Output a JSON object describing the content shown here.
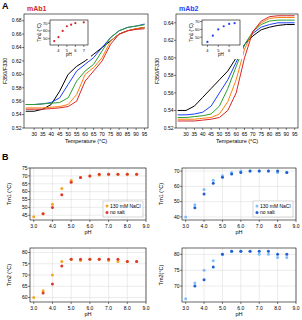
{
  "panel_labels": [
    "A",
    "B"
  ],
  "chart_data": [
    {
      "type": "line",
      "title": "mAb1",
      "color": "#d62728",
      "x_label": "Temperature (°C)",
      "y_label": "F350/F330",
      "x": [
        25,
        30,
        35,
        40,
        45,
        50,
        55,
        60,
        65,
        70,
        75,
        80,
        85,
        90,
        95
      ],
      "xlim": [
        24,
        97
      ],
      "xticks": [
        30,
        35,
        40,
        45,
        50,
        55,
        60,
        65,
        70,
        75,
        80,
        85,
        90,
        95
      ],
      "ylim": [
        0.52,
        0.69
      ],
      "yticks": [
        0.52,
        0.54,
        0.56,
        0.58,
        {
          "value": 0.6,
          "label": "0.60"
        },
        0.62,
        0.64,
        0.66,
        0.68
      ],
      "grid": false,
      "series": [
        {
          "color": "#000000",
          "values": [
            0.545,
            0.545,
            0.548,
            0.555,
            0.575,
            0.6,
            0.612,
            0.62,
            0.63,
            0.64,
            0.65,
            0.66,
            0.665,
            0.668,
            0.67
          ]
        },
        {
          "color": "#1f3fff",
          "values": [
            0.555,
            0.555,
            0.556,
            0.558,
            0.565,
            0.585,
            0.605,
            0.615,
            0.625,
            0.64,
            0.655,
            0.665,
            0.67,
            0.672,
            0.675
          ]
        },
        {
          "color": "#2ca02c",
          "values": [
            0.555,
            0.555,
            0.556,
            0.557,
            0.558,
            0.565,
            0.59,
            0.605,
            0.615,
            0.635,
            0.655,
            0.665,
            0.67,
            0.672,
            0.674
          ]
        },
        {
          "color": "#ff7f0e",
          "values": [
            0.55,
            0.55,
            0.55,
            0.551,
            0.552,
            0.555,
            0.57,
            0.6,
            0.61,
            0.625,
            0.65,
            0.66,
            0.665,
            0.668,
            0.67
          ]
        },
        {
          "color": "#d62728",
          "values": [
            0.548,
            0.548,
            0.548,
            0.549,
            0.55,
            0.552,
            0.56,
            0.59,
            0.605,
            0.62,
            0.645,
            0.66,
            0.665,
            0.667,
            0.668
          ]
        }
      ]
    },
    {
      "type": "scatter",
      "x_label": "pH",
      "y_label": "Tm1 (°C)",
      "xlim": [
        3,
        7.5
      ],
      "xticks": [
        4,
        5,
        6,
        7
      ],
      "ylim": [
        42,
        74
      ],
      "yticks": [
        50,
        60,
        70
      ],
      "grid": false,
      "series": [
        {
          "color": "#d62728",
          "marker": "circle",
          "x": [
            3.5,
            4,
            4.5,
            5,
            5.5,
            6,
            7
          ],
          "values": [
            47,
            52,
            60,
            66,
            68,
            70,
            71
          ]
        }
      ]
    },
    {
      "type": "line",
      "title": "mAb2",
      "color": "#1f3fff",
      "x_label": "Temperature (°C)",
      "y_label": "F350/F330",
      "x": [
        25,
        30,
        35,
        40,
        45,
        50,
        55,
        60,
        65,
        70,
        75,
        80,
        85,
        90,
        95
      ],
      "xlim": [
        24,
        97
      ],
      "xticks": [
        30,
        35,
        40,
        45,
        50,
        55,
        60,
        65,
        70,
        75,
        80,
        85,
        90,
        95
      ],
      "ylim": [
        0.52,
        0.65
      ],
      "yticks": [
        0.52,
        0.54,
        0.56,
        0.58,
        {
          "value": 0.6,
          "label": "0.60"
        },
        0.62,
        0.64
      ],
      "grid": false,
      "series": [
        {
          "color": "#000000",
          "values": [
            0.54,
            0.54,
            0.545,
            0.555,
            0.565,
            0.575,
            0.585,
            0.6,
            0.615,
            0.625,
            0.632,
            0.635,
            0.637,
            0.638,
            0.638
          ]
        },
        {
          "color": "#1f3fff",
          "values": [
            0.535,
            0.535,
            0.536,
            0.538,
            0.545,
            0.56,
            0.575,
            0.595,
            0.615,
            0.628,
            0.635,
            0.638,
            0.64,
            0.64,
            0.64
          ]
        },
        {
          "color": "#2ca02c",
          "values": [
            0.532,
            0.532,
            0.533,
            0.534,
            0.536,
            0.545,
            0.565,
            0.59,
            0.615,
            0.63,
            0.638,
            0.642,
            0.643,
            0.643,
            0.643
          ]
        },
        {
          "color": "#ff7f0e",
          "values": [
            0.53,
            0.53,
            0.53,
            0.531,
            0.532,
            0.536,
            0.55,
            0.575,
            0.61,
            0.63,
            0.64,
            0.645,
            0.646,
            0.646,
            0.646
          ]
        },
        {
          "color": "#d62728",
          "values": [
            0.528,
            0.528,
            0.528,
            0.529,
            0.53,
            0.532,
            0.54,
            0.56,
            0.6,
            0.63,
            0.642,
            0.647,
            0.648,
            0.648,
            0.648
          ]
        }
      ]
    },
    {
      "type": "scatter",
      "x_label": "pH",
      "y_label": "Tm1 (°C)",
      "xlim": [
        3.5,
        7
      ],
      "xticks": [
        4,
        5,
        6
      ],
      "ylim": [
        40,
        72
      ],
      "yticks": [
        50,
        60,
        70
      ],
      "grid": false,
      "series": [
        {
          "color": "#1f3fff",
          "marker": "circle",
          "x": [
            4,
            4.5,
            5,
            5.5,
            6,
            6.5
          ],
          "values": [
            44,
            52,
            60,
            64,
            67,
            68
          ]
        }
      ]
    },
    {
      "type": "scatter",
      "x_label": "pH",
      "y_label": "Tm1 (°C)",
      "xlim": [
        2.8,
        9
      ],
      "xticks": [
        {
          "value": 3,
          "label": "3.0"
        },
        {
          "value": 4,
          "label": "4.0"
        },
        {
          "value": 5,
          "label": "5.0"
        },
        {
          "value": 6,
          "label": "6.0"
        },
        {
          "value": 7,
          "label": "7.0"
        },
        {
          "value": 8,
          "label": "8.0"
        },
        {
          "value": 9,
          "label": "9.0"
        }
      ],
      "ylim": [
        42,
        75
      ],
      "yticks": [
        45,
        50,
        55,
        60,
        65,
        70,
        75
      ],
      "grid": true,
      "legend": "lower right",
      "series": [
        {
          "name": "130 mM NaCl",
          "color": "#f5a623",
          "marker": "circle",
          "x": [
            3,
            3.5,
            4,
            4.5,
            5,
            5.5,
            6,
            6.5,
            7,
            7.5,
            8,
            8.5
          ],
          "values": [
            44,
            46,
            52,
            62,
            67,
            69,
            70,
            70.5,
            71,
            71,
            71,
            71
          ]
        },
        {
          "name": "no salt",
          "color": "#e0392b",
          "marker": "circle",
          "x": [
            3.5,
            4,
            4.5,
            5,
            5.5,
            6,
            6.5,
            7,
            7.5,
            8,
            8.5
          ],
          "values": [
            46,
            50,
            58,
            66,
            69,
            70,
            71,
            71,
            71,
            71,
            71
          ]
        }
      ]
    },
    {
      "type": "scatter",
      "x_label": "pH",
      "y_label": "Tm1 (°C)",
      "xlim": [
        2.8,
        9
      ],
      "xticks": [
        {
          "value": 3,
          "label": "3.0"
        },
        {
          "value": 4,
          "label": "4.0"
        },
        {
          "value": 5,
          "label": "5.0"
        },
        {
          "value": 6,
          "label": "6.0"
        },
        {
          "value": 7,
          "label": "7.0"
        },
        {
          "value": 8,
          "label": "8.0"
        },
        {
          "value": 9,
          "label": "9.0"
        }
      ],
      "ylim": [
        38,
        72
      ],
      "yticks": [
        40,
        50,
        60,
        70
      ],
      "grid": true,
      "legend": "lower right",
      "series": [
        {
          "name": "130 mM NaCl",
          "color": "#7fbfff",
          "marker": "circle",
          "x": [
            3,
            3.5,
            4,
            4.5,
            5,
            5.5,
            6,
            6.5,
            7,
            7.5,
            8,
            8.5
          ],
          "values": [
            40,
            48,
            58,
            64,
            67,
            69,
            70,
            70,
            70,
            70,
            69,
            69
          ]
        },
        {
          "name": "no salt",
          "color": "#1f5fd1",
          "marker": "circle",
          "x": [
            3.5,
            4,
            4.5,
            5,
            5.5,
            6,
            6.5,
            7,
            7.5,
            8,
            8.5
          ],
          "values": [
            46,
            55,
            62,
            66,
            68,
            69,
            70,
            70,
            70,
            70,
            69
          ]
        }
      ]
    },
    {
      "type": "scatter",
      "x_label": "pH",
      "y_label": "Tm2 (°C)",
      "xlim": [
        2.8,
        9
      ],
      "xticks": [
        {
          "value": 3,
          "label": "3.0"
        },
        {
          "value": 4,
          "label": "4.0"
        },
        {
          "value": 5,
          "label": "5.0"
        },
        {
          "value": 6,
          "label": "6.0"
        },
        {
          "value": 7,
          "label": "7.0"
        },
        {
          "value": 8,
          "label": "8.0"
        },
        {
          "value": 9,
          "label": "9.0"
        }
      ],
      "ylim": [
        58,
        82
      ],
      "yticks": [
        60,
        65,
        70,
        75,
        80
      ],
      "grid": true,
      "series": [
        {
          "name": "130 mM NaCl",
          "color": "#f5a623",
          "marker": "circle",
          "x": [
            3,
            3.5,
            4,
            4.5,
            5,
            5.5,
            6,
            6.5,
            7,
            7.5,
            8,
            8.5
          ],
          "values": [
            60,
            63,
            70,
            76,
            77,
            76.5,
            77,
            77,
            76.5,
            76,
            76,
            76
          ]
        },
        {
          "name": "no salt",
          "color": "#e0392b",
          "marker": "circle",
          "x": [
            3.5,
            4,
            4.5,
            5,
            5.5,
            6,
            6.5,
            7,
            7.5,
            8,
            8.5
          ],
          "values": [
            62,
            66,
            74,
            77,
            77,
            77,
            77,
            77,
            77,
            76,
            76
          ]
        }
      ]
    },
    {
      "type": "scatter",
      "x_label": "pH",
      "y_label": "Tm2(°C)",
      "xlim": [
        2.8,
        9
      ],
      "xticks": [
        {
          "value": 3,
          "label": "3.0"
        },
        {
          "value": 4,
          "label": "4.0"
        },
        {
          "value": 5,
          "label": "5.0"
        },
        {
          "value": 6,
          "label": "6.0"
        },
        {
          "value": 7,
          "label": "7.0"
        },
        {
          "value": 8,
          "label": "8.0"
        },
        {
          "value": 9,
          "label": "9.0"
        }
      ],
      "ylim": [
        65,
        82
      ],
      "yticks": [
        70,
        75,
        80
      ],
      "grid": true,
      "series": [
        {
          "name": "130 mM NaCl",
          "color": "#7fbfff",
          "marker": "circle",
          "x": [
            3,
            3.5,
            4,
            4.5,
            5,
            5.5,
            6,
            6.5,
            7,
            7.5,
            8,
            8.5
          ],
          "values": [
            66,
            71,
            75,
            78,
            80,
            81,
            81,
            81,
            80,
            80,
            79,
            79
          ]
        },
        {
          "name": "no salt",
          "color": "#1f5fd1",
          "marker": "circle",
          "x": [
            3.5,
            4,
            4.5,
            5,
            5.5,
            6,
            6.5,
            7,
            7.5,
            8,
            8.5
          ],
          "values": [
            70,
            72,
            76,
            80,
            81,
            81,
            81,
            81,
            81,
            80,
            80
          ]
        }
      ]
    }
  ]
}
